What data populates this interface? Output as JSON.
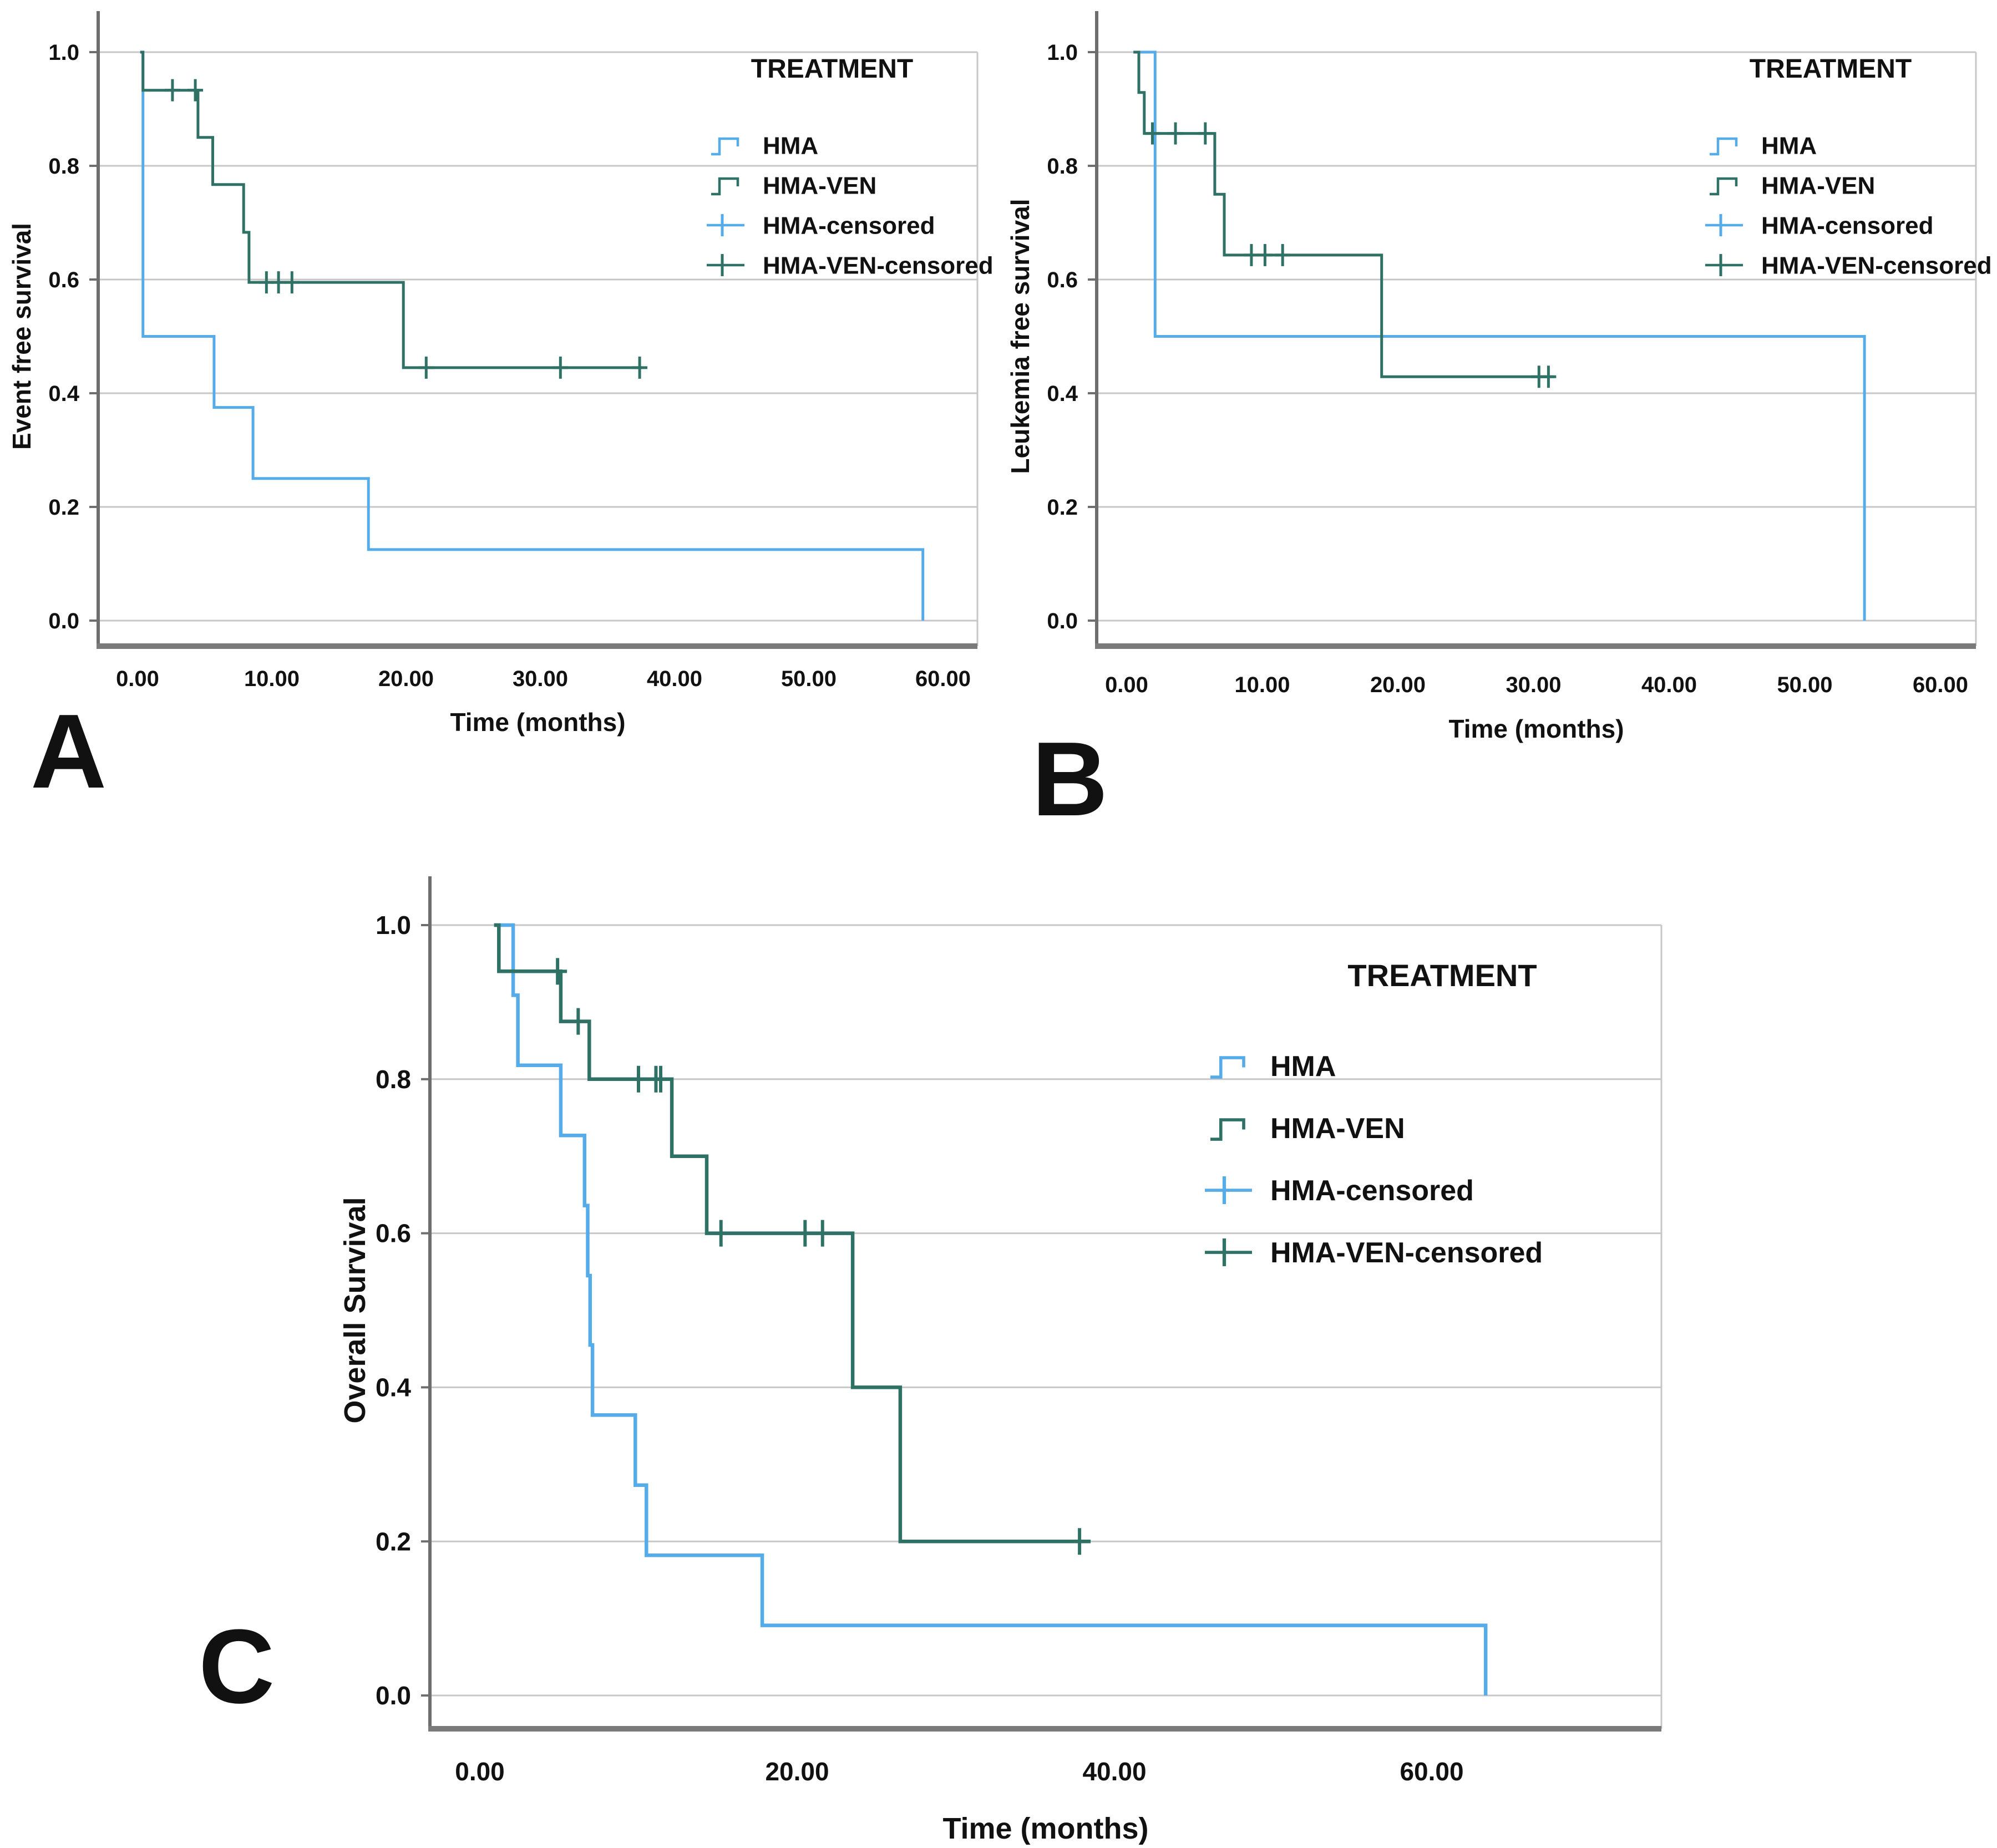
{
  "figure": {
    "panels": [
      "A",
      "B",
      "C"
    ],
    "colors": {
      "hma": "#56ACE8",
      "hma_ven": "#2F7265",
      "gridline": "#C7C7C7",
      "axis": "#6E6E6E",
      "bottom_axis": "#7A7A7A",
      "text": "#111111"
    }
  },
  "chart_data": [
    {
      "type": "line",
      "subtype": "kaplan-meier-step",
      "panel_label": "A",
      "ylabel": "Event free survival",
      "xlabel": "Time (months)",
      "xticks": [
        0,
        10,
        20,
        30,
        40,
        50,
        60
      ],
      "xtick_labels": [
        "0.00",
        "10.00",
        "20.00",
        "30.00",
        "40.00",
        "50.00",
        "60.00"
      ],
      "yticks": [
        0.0,
        0.2,
        0.4,
        0.6,
        0.8,
        1.0
      ],
      "ytick_labels": [
        "0.0",
        "0.2",
        "0.4",
        "0.6",
        "0.8",
        "1.0"
      ],
      "ylim": [
        0,
        1
      ],
      "xlim": [
        -3,
        62.5
      ],
      "grid": true,
      "legend": {
        "title": "TREATMENT",
        "entries": [
          "HMA",
          "HMA-VEN",
          "HMA-censored",
          "HMA-VEN-censored"
        ],
        "position": "upper-right-inside"
      },
      "series": [
        {
          "name": "HMA",
          "color": "#56ACE8",
          "steps": [
            [
              0.2,
              1
            ],
            [
              0.4,
              1
            ],
            [
              0.4,
              0.5
            ],
            [
              5.7,
              0.5
            ],
            [
              5.7,
              0.375
            ],
            [
              8.6,
              0.375
            ],
            [
              8.6,
              0.25
            ],
            [
              17.2,
              0.25
            ],
            [
              17.2,
              0.125
            ],
            [
              58.5,
              0.125
            ],
            [
              58.5,
              0
            ]
          ],
          "censored": []
        },
        {
          "name": "HMA-VEN",
          "color": "#2F7265",
          "steps": [
            [
              0.2,
              1
            ],
            [
              0.4,
              1
            ],
            [
              0.4,
              0.933
            ],
            [
              4.5,
              0.933
            ],
            [
              4.5,
              0.85
            ],
            [
              5.6,
              0.85
            ],
            [
              5.6,
              0.767
            ],
            [
              7.9,
              0.767
            ],
            [
              7.9,
              0.683
            ],
            [
              8.3,
              0.683
            ],
            [
              8.3,
              0.595
            ],
            [
              19.8,
              0.595
            ],
            [
              19.8,
              0.445
            ],
            [
              37.6,
              0.445
            ]
          ],
          "censored": [
            [
              2.6,
              0.933
            ],
            [
              4.3,
              0.933
            ],
            [
              9.6,
              0.595
            ],
            [
              10.5,
              0.595
            ],
            [
              11.5,
              0.595
            ],
            [
              21.5,
              0.445
            ],
            [
              31.5,
              0.445
            ],
            [
              37.4,
              0.445
            ]
          ]
        }
      ]
    },
    {
      "type": "line",
      "subtype": "kaplan-meier-step",
      "panel_label": "B",
      "ylabel": "Leukemia free survival",
      "xlabel": "Time (months)",
      "xticks": [
        0,
        10,
        20,
        30,
        40,
        50,
        60
      ],
      "xtick_labels": [
        "0.00",
        "10.00",
        "20.00",
        "30.00",
        "40.00",
        "50.00",
        "60.00"
      ],
      "yticks": [
        0.0,
        0.2,
        0.4,
        0.6,
        0.8,
        1.0
      ],
      "ytick_labels": [
        "0.0",
        "0.2",
        "0.4",
        "0.6",
        "0.8",
        "1.0"
      ],
      "ylim": [
        0,
        1
      ],
      "xlim": [
        -3,
        62.5
      ],
      "grid": true,
      "legend": {
        "title": "TREATMENT",
        "entries": [
          "HMA",
          "HMA-VEN",
          "HMA-censored",
          "HMA-VEN-censored"
        ],
        "position": "upper-right-inside"
      },
      "series": [
        {
          "name": "HMA",
          "color": "#56ACE8",
          "steps": [
            [
              0.5,
              1
            ],
            [
              2.1,
              1
            ],
            [
              2.1,
              0.5
            ],
            [
              54.4,
              0.5
            ],
            [
              54.4,
              0
            ]
          ],
          "censored": []
        },
        {
          "name": "HMA-VEN",
          "color": "#2F7265",
          "steps": [
            [
              0.5,
              1
            ],
            [
              0.9,
              1
            ],
            [
              0.9,
              0.929
            ],
            [
              1.3,
              0.929
            ],
            [
              1.3,
              0.857
            ],
            [
              6.5,
              0.857
            ],
            [
              6.5,
              0.75
            ],
            [
              7.2,
              0.75
            ],
            [
              7.2,
              0.643
            ],
            [
              18.8,
              0.643
            ],
            [
              18.8,
              0.429
            ],
            [
              31.5,
              0.429
            ]
          ],
          "censored": [
            [
              1.9,
              0.857
            ],
            [
              3.6,
              0.857
            ],
            [
              5.8,
              0.857
            ],
            [
              9.2,
              0.643
            ],
            [
              10.2,
              0.643
            ],
            [
              11.5,
              0.643
            ],
            [
              30.4,
              0.429
            ],
            [
              31.1,
              0.429
            ]
          ]
        }
      ]
    },
    {
      "type": "line",
      "subtype": "kaplan-meier-step",
      "panel_label": "C",
      "ylabel": "Overall Survival",
      "xlabel": "Time (months)",
      "xticks": [
        0,
        20,
        40,
        60
      ],
      "xtick_labels": [
        "0.00",
        "20.00",
        "40.00",
        "60.00"
      ],
      "yticks": [
        0.0,
        0.2,
        0.4,
        0.6,
        0.8,
        1.0
      ],
      "ytick_labels": [
        "0.0",
        "0.2",
        "0.4",
        "0.6",
        "0.8",
        "1.0"
      ],
      "ylim": [
        0,
        1
      ],
      "xlim": [
        -3.2,
        74.5
      ],
      "grid": true,
      "legend": {
        "title": "TREATMENT",
        "entries": [
          "HMA",
          "HMA-VEN",
          "HMA-censored",
          "HMA-VEN-censored"
        ],
        "position": "upper-right-inside"
      },
      "series": [
        {
          "name": "HMA",
          "color": "#56ACE8",
          "steps": [
            [
              0.9,
              1
            ],
            [
              2.1,
              1
            ],
            [
              2.1,
              0.909
            ],
            [
              2.4,
              0.909
            ],
            [
              2.4,
              0.818
            ],
            [
              5.1,
              0.818
            ],
            [
              5.1,
              0.727
            ],
            [
              6.6,
              0.727
            ],
            [
              6.6,
              0.636
            ],
            [
              6.8,
              0.636
            ],
            [
              6.8,
              0.545
            ],
            [
              6.95,
              0.545
            ],
            [
              6.95,
              0.455
            ],
            [
              7.1,
              0.455
            ],
            [
              7.1,
              0.364
            ],
            [
              9.8,
              0.364
            ],
            [
              9.8,
              0.273
            ],
            [
              10.5,
              0.273
            ],
            [
              10.5,
              0.182
            ],
            [
              17.8,
              0.182
            ],
            [
              17.8,
              0.091
            ],
            [
              63.4,
              0.091
            ],
            [
              63.4,
              0
            ]
          ],
          "censored": []
        },
        {
          "name": "HMA-VEN",
          "color": "#2F7265",
          "steps": [
            [
              0.9,
              1
            ],
            [
              1.2,
              1
            ],
            [
              1.2,
              0.94
            ],
            [
              5.1,
              0.94
            ],
            [
              5.1,
              0.875
            ],
            [
              6.9,
              0.875
            ],
            [
              6.9,
              0.8
            ],
            [
              12.1,
              0.8
            ],
            [
              12.1,
              0.7
            ],
            [
              14.3,
              0.7
            ],
            [
              14.3,
              0.6
            ],
            [
              23.5,
              0.6
            ],
            [
              23.5,
              0.4
            ],
            [
              26.5,
              0.4
            ],
            [
              26.5,
              0.2
            ],
            [
              38.5,
              0.2
            ]
          ],
          "censored": [
            [
              4.9,
              0.94
            ],
            [
              6.2,
              0.875
            ],
            [
              10.0,
              0.8
            ],
            [
              11.1,
              0.8
            ],
            [
              11.4,
              0.8
            ],
            [
              15.2,
              0.6
            ],
            [
              20.5,
              0.6
            ],
            [
              21.6,
              0.6
            ],
            [
              37.8,
              0.2
            ]
          ]
        }
      ]
    }
  ]
}
